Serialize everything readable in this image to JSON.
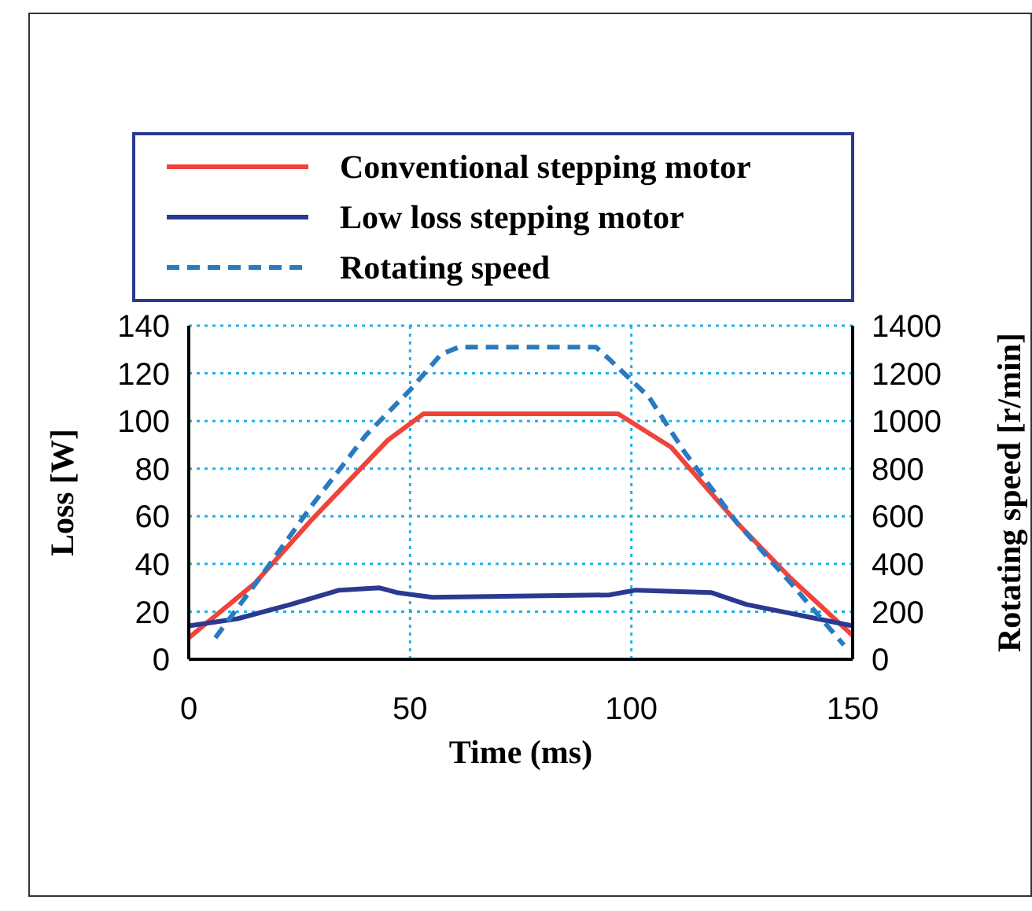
{
  "chart_data": {
    "type": "line",
    "xlabel": "Time (ms)",
    "ylabel": "Loss [W]",
    "y2label": "Rotating speed [r/min]",
    "xlim": [
      0,
      150
    ],
    "xticks": [
      0,
      50,
      100,
      150
    ],
    "ylim": [
      0,
      140
    ],
    "yticks": [
      0,
      20,
      40,
      60,
      80,
      100,
      120,
      140
    ],
    "y2lim": [
      0,
      1400
    ],
    "y2ticks": [
      0,
      200,
      400,
      600,
      800,
      1000,
      1200,
      1400
    ],
    "grid": true,
    "legend": "top",
    "marker": "none",
    "series": [
      {
        "name": "Conventional stepping motor",
        "color": "#f0433a",
        "x": [
          0,
          15,
          28,
          45,
          53,
          97,
          109,
          124,
          136,
          150
        ],
        "values": [
          9,
          32,
          59,
          92,
          103,
          103,
          89,
          57,
          34,
          10
        ]
      },
      {
        "name": "Low loss stepping motor",
        "color": "#2b3990",
        "x": [
          0,
          11,
          23,
          34,
          43,
          47,
          55,
          95,
          101,
          118,
          126,
          150
        ],
        "values": [
          14,
          17,
          23,
          29,
          30,
          28,
          26,
          27,
          29,
          28,
          23,
          14
        ]
      },
      {
        "name": "Rotating speed",
        "color": "#2a7ac0",
        "axis": "y2",
        "line_style": "dashed",
        "x": [
          6,
          16,
          28,
          40,
          50,
          57,
          61,
          92,
          95,
          104,
          112,
          124,
          136,
          148
        ],
        "values": [
          90,
          340,
          650,
          940,
          1130,
          1280,
          1310,
          1310,
          1260,
          1100,
          870,
          570,
          320,
          60
        ]
      }
    ]
  }
}
